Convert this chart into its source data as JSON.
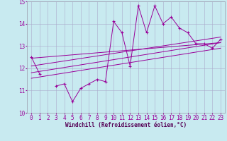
{
  "xlabel": "Windchill (Refroidissement éolien,°C)",
  "bg_color": "#c8eaf0",
  "line_color": "#990099",
  "grid_color": "#aaaacc",
  "spine_color": "#9999aa",
  "x_values": [
    0,
    1,
    2,
    3,
    4,
    5,
    6,
    7,
    8,
    9,
    10,
    11,
    12,
    13,
    14,
    15,
    16,
    17,
    18,
    19,
    20,
    21,
    22,
    23
  ],
  "main_y": [
    12.5,
    11.75,
    null,
    11.2,
    11.3,
    10.5,
    11.1,
    11.3,
    11.5,
    11.4,
    14.1,
    13.6,
    12.1,
    14.8,
    13.6,
    14.8,
    14.0,
    14.3,
    13.8,
    13.6,
    13.1,
    13.1,
    12.9,
    13.3
  ],
  "trend_lines": [
    {
      "x": [
        0,
        23
      ],
      "y": [
        12.45,
        13.15
      ]
    },
    {
      "x": [
        0,
        23
      ],
      "y": [
        12.1,
        13.4
      ]
    },
    {
      "x": [
        0,
        23
      ],
      "y": [
        11.8,
        13.15
      ]
    },
    {
      "x": [
        0,
        23
      ],
      "y": [
        11.55,
        12.9
      ]
    }
  ],
  "ylim": [
    10,
    15
  ],
  "xlim_min": -0.5,
  "xlim_max": 23.5,
  "yticks": [
    10,
    11,
    12,
    13,
    14,
    15
  ],
  "xticks": [
    0,
    1,
    2,
    3,
    4,
    5,
    6,
    7,
    8,
    9,
    10,
    11,
    12,
    13,
    14,
    15,
    16,
    17,
    18,
    19,
    20,
    21,
    22,
    23
  ],
  "tick_fontsize": 5.5,
  "xlabel_fontsize": 5.5,
  "xlabel_color": "#550055"
}
